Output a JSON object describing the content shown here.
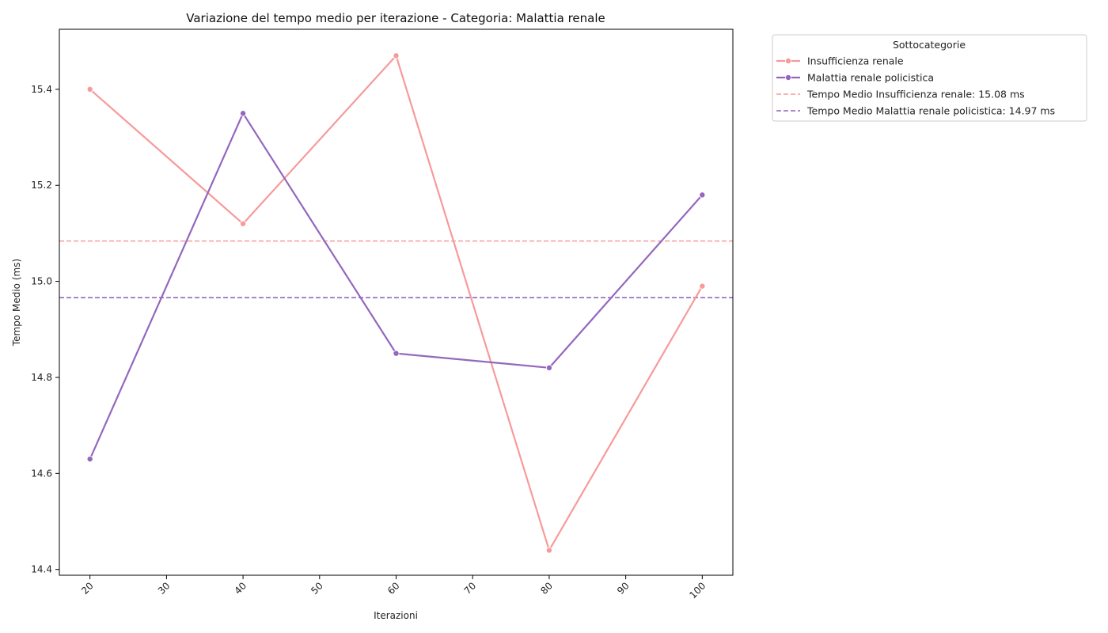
{
  "chart_data": {
    "type": "line",
    "title": "Variazione del tempo medio per iterazione - Categoria: Malattia renale",
    "xlabel": "Iterazioni",
    "ylabel": "Tempo Medio (ms)",
    "x": [
      20,
      40,
      60,
      80,
      100
    ],
    "xlim": [
      16,
      104
    ],
    "ylim": [
      14.388,
      15.525
    ],
    "xticks": [
      20,
      30,
      40,
      50,
      60,
      70,
      80,
      90,
      100
    ],
    "yticks": [
      14.4,
      14.6,
      14.8,
      15.0,
      15.2,
      15.4
    ],
    "ytick_labels": [
      "14.4",
      "14.6",
      "14.8",
      "15.0",
      "15.2",
      "15.4"
    ],
    "series": [
      {
        "name": "Insufficienza renale",
        "color": "#f79a9a",
        "values": [
          15.4,
          15.12,
          15.47,
          14.44,
          14.99
        ]
      },
      {
        "name": "Malattia renale policistica",
        "color": "#9467bd",
        "values": [
          14.63,
          15.35,
          14.85,
          14.82,
          15.18
        ]
      }
    ],
    "mean_lines": [
      {
        "name": "Tempo Medio Insufficienza renale: 15.08 ms",
        "color": "#f79a9a",
        "value": 15.084
      },
      {
        "name": "Tempo Medio Malattia renale policistica: 14.97 ms",
        "color": "#9467bd",
        "value": 14.966
      }
    ],
    "legend": {
      "title": "Sottocategorie",
      "placement": "outside-top-right"
    },
    "grid": false
  }
}
